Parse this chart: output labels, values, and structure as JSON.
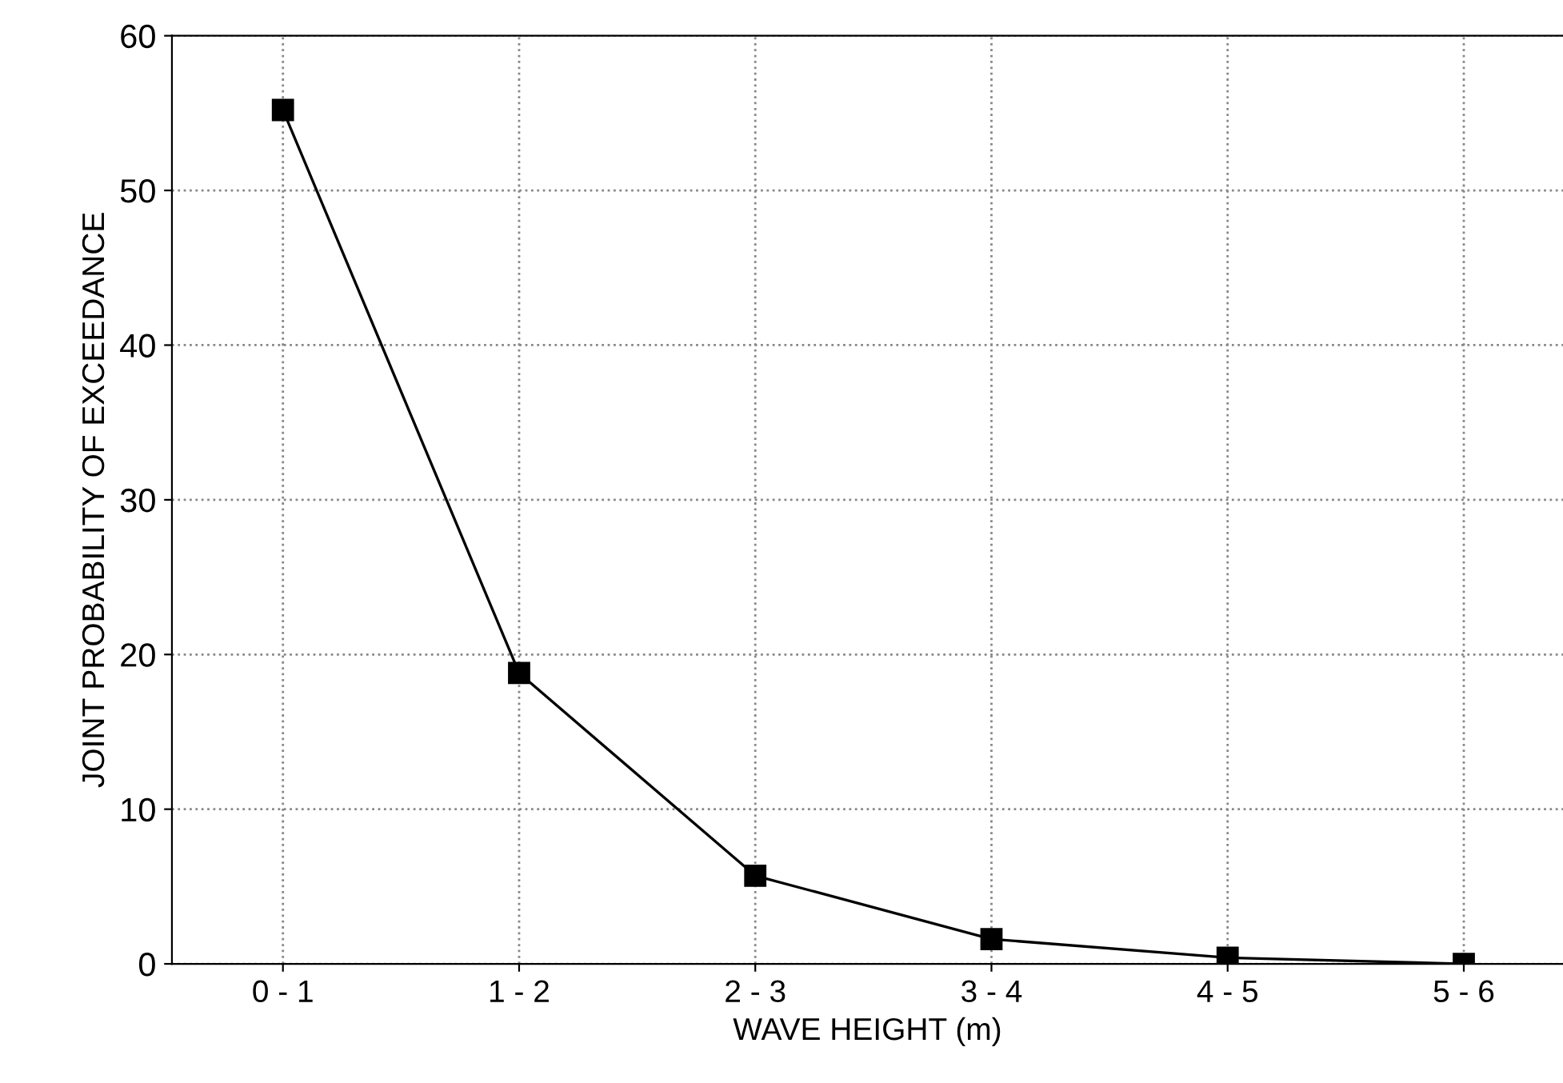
{
  "chart_data": {
    "type": "line",
    "xlabel": "WAVE HEIGHT (m)",
    "ylabel": "JOINT PROBABILITY OF EXCEEDANCE",
    "categories": [
      "0 - 1",
      "1 - 2",
      "2 - 3",
      "3 - 4",
      "4 - 5",
      "5 - 6"
    ],
    "series": [
      {
        "color": "#000000",
        "values": [
          55.2,
          18.8,
          5.7,
          1.6,
          0.4,
          0
        ]
      }
    ],
    "ylim": [
      0,
      60
    ],
    "yticks": [
      0,
      10,
      20,
      30,
      40,
      50,
      60
    ],
    "grid": true,
    "marker": "square",
    "line_style": "solid"
  }
}
